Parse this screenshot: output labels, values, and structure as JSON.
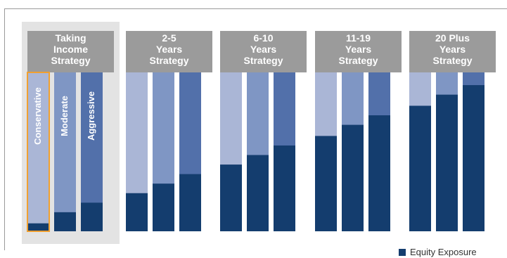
{
  "chart_data": {
    "type": "bar",
    "stacked": true,
    "value_unit": "percent of bar height",
    "groups": [
      {
        "name": "Taking Income Strategy",
        "header_lines": [
          "Taking",
          "Income",
          "Strategy"
        ],
        "highlighted": true,
        "bars": [
          {
            "label": "Conservative",
            "equity": 5,
            "outlined": true
          },
          {
            "label": "Moderate",
            "equity": 12
          },
          {
            "label": "Aggressive",
            "equity": 18
          }
        ]
      },
      {
        "name": "2-5 Years Strategy",
        "header_lines": [
          "2-5",
          "Years",
          "Strategy"
        ],
        "bars": [
          {
            "label": "",
            "equity": 24
          },
          {
            "label": "",
            "equity": 30
          },
          {
            "label": "",
            "equity": 36
          }
        ]
      },
      {
        "name": "6-10 Years Strategy",
        "header_lines": [
          "6-10",
          "Years",
          "Strategy"
        ],
        "bars": [
          {
            "label": "",
            "equity": 42
          },
          {
            "label": "",
            "equity": 48
          },
          {
            "label": "",
            "equity": 54
          }
        ]
      },
      {
        "name": "11-19 Years Strategy",
        "header_lines": [
          "11-19",
          "Years",
          "Strategy"
        ],
        "bars": [
          {
            "label": "",
            "equity": 60
          },
          {
            "label": "",
            "equity": 67
          },
          {
            "label": "",
            "equity": 73
          }
        ]
      },
      {
        "name": "20 Plus Years Strategy",
        "header_lines": [
          "20 Plus",
          "Years",
          "Strategy"
        ],
        "bars": [
          {
            "label": "",
            "equity": 79
          },
          {
            "label": "",
            "equity": 86
          },
          {
            "label": "",
            "equity": 92
          }
        ]
      }
    ],
    "legend": {
      "entries": [
        "Equity Exposure"
      ],
      "placement": "bottom-right"
    },
    "colors": {
      "equity": "#143d6e",
      "conservative_fill": "#aab6d6",
      "moderate_fill": "#7f96c4",
      "aggressive_fill": "#5270aa",
      "header": "#9b9b9b",
      "highlight_panel": "#e3e3e3",
      "outline": "#f0a030"
    }
  }
}
